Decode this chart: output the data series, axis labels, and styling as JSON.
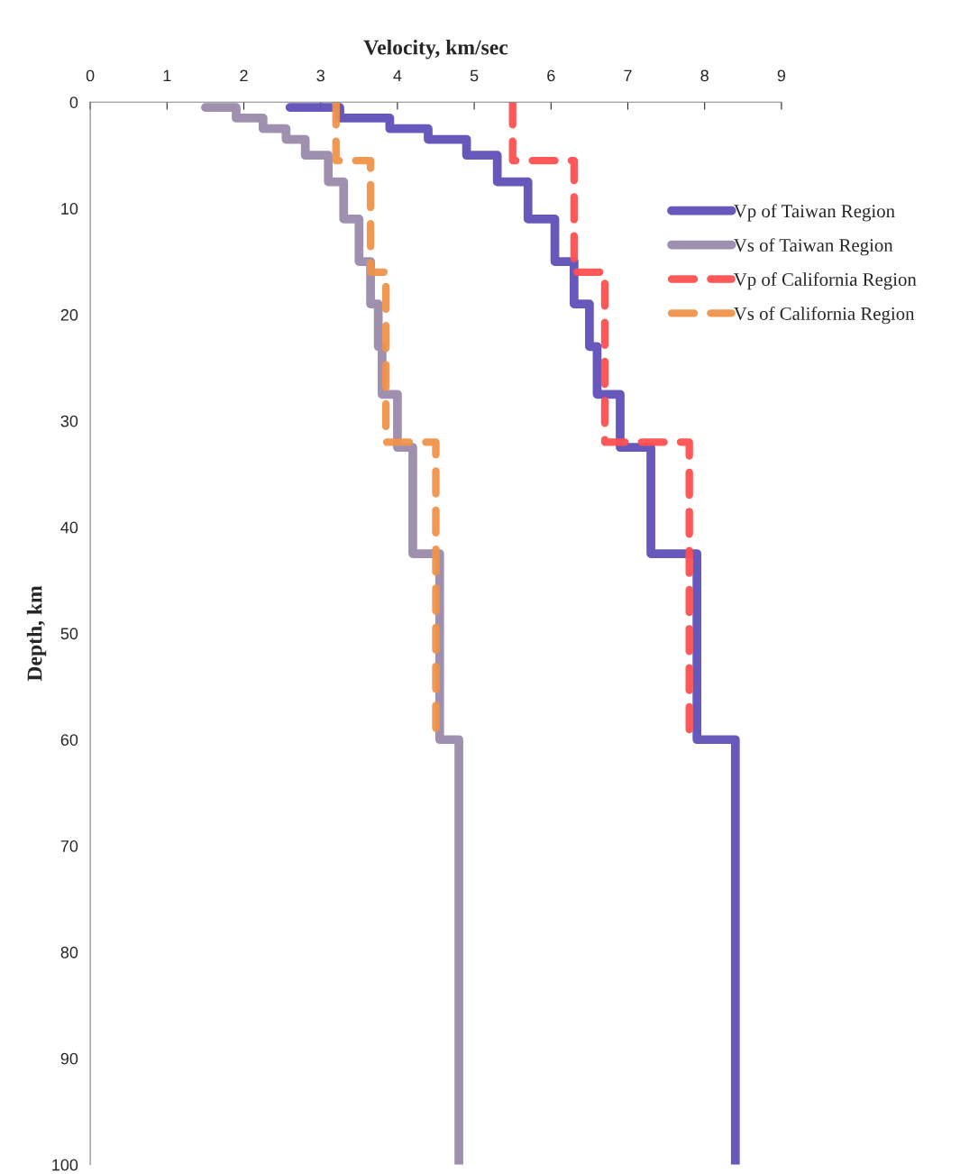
{
  "chart_data": {
    "type": "line",
    "xlabel": "Velocity, km/sec",
    "ylabel": "Depth, km",
    "xlim": [
      0,
      9
    ],
    "xticks": [
      0,
      1,
      2,
      3,
      4,
      5,
      6,
      7,
      8,
      9
    ],
    "ylim": [
      100,
      0
    ],
    "yticks": [
      0,
      10,
      20,
      30,
      40,
      50,
      60,
      70,
      80,
      90,
      100
    ],
    "grid": false,
    "legend": "top right",
    "marker": "none",
    "series": [
      {
        "name": "Vp of Taiwan Region",
        "color": "#5f4fb8",
        "line_style": "solid",
        "x": [
          2.6,
          3.25,
          3.25,
          3.9,
          3.9,
          4.4,
          4.4,
          4.9,
          4.9,
          5.3,
          5.3,
          5.7,
          5.7,
          6.05,
          6.05,
          6.3,
          6.3,
          6.5,
          6.5,
          6.6,
          6.6,
          6.9,
          6.9,
          7.3,
          7.3,
          7.9,
          7.9,
          8.4,
          8.4
        ],
        "values": [
          0.5,
          0.5,
          1.5,
          1.5,
          2.5,
          2.5,
          3.5,
          3.5,
          5,
          5,
          7.5,
          7.5,
          11,
          11,
          15,
          15,
          19,
          19,
          23,
          23,
          27.5,
          27.5,
          32.5,
          32.5,
          42.5,
          42.5,
          60,
          60,
          100
        ]
      },
      {
        "name": "Vs of Taiwan Region",
        "color": "#9a8aac",
        "line_style": "solid",
        "x": [
          1.5,
          1.9,
          1.9,
          2.25,
          2.25,
          2.55,
          2.55,
          2.8,
          2.8,
          3.1,
          3.1,
          3.3,
          3.3,
          3.5,
          3.5,
          3.65,
          3.65,
          3.75,
          3.75,
          3.8,
          3.8,
          4.0,
          4.0,
          4.2,
          4.2,
          4.55,
          4.55,
          4.8,
          4.8
        ],
        "values": [
          0.5,
          0.5,
          1.5,
          1.5,
          2.5,
          2.5,
          3.5,
          3.5,
          5,
          5,
          7.5,
          7.5,
          11,
          11,
          15,
          15,
          19,
          19,
          23,
          23,
          27.5,
          27.5,
          32.5,
          32.5,
          42.5,
          42.5,
          60,
          60,
          100
        ]
      },
      {
        "name": "Vp of California Region",
        "color": "#ff4f4f",
        "line_style": "dashed",
        "x": [
          5.5,
          5.5,
          6.3,
          6.3,
          6.7,
          6.7,
          7.8,
          7.8
        ],
        "values": [
          0,
          5.5,
          5.5,
          16,
          16,
          32,
          32,
          60
        ]
      },
      {
        "name": "Vs of California Region",
        "color": "#f0924a",
        "line_style": "dashed",
        "x": [
          3.2,
          3.2,
          3.65,
          3.65,
          3.85,
          3.85,
          4.5,
          4.5
        ],
        "values": [
          0,
          5.5,
          5.5,
          16,
          16,
          32,
          32,
          60
        ]
      }
    ]
  }
}
